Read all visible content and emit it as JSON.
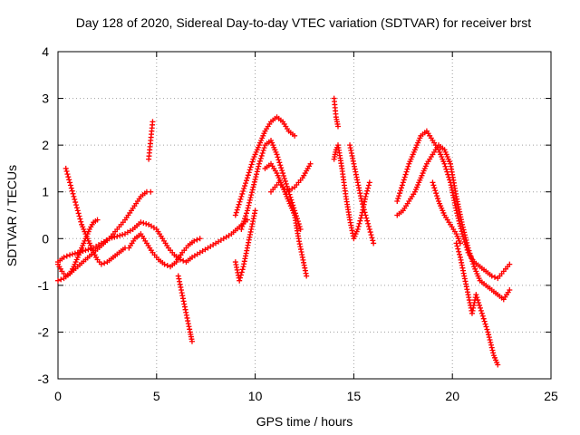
{
  "chart_data": {
    "type": "scatter",
    "title": "Day 128 of 2020, Sidereal Day-to-day VTEC variation (SDTVAR) for receiver brst",
    "xlabel": "GPS time / hours",
    "ylabel": "SDTVAR / TECUs",
    "xlim": [
      0,
      25
    ],
    "ylim": [
      -3,
      4
    ],
    "xticks": [
      "0",
      "5",
      "10",
      "15",
      "20",
      "25"
    ],
    "yticks": [
      "-3",
      "-2",
      "-1",
      "0",
      "1",
      "2",
      "3",
      "4"
    ],
    "grid": true,
    "marker": "+",
    "series": [
      {
        "name": "track-1",
        "color": "#ff0000",
        "x": [
          0.0,
          0.3,
          0.6,
          1.0,
          1.4,
          1.8,
          2.2,
          2.6,
          3.0,
          3.4,
          3.8,
          4.2,
          4.6,
          5.0,
          5.3,
          5.6,
          5.9,
          6.2,
          6.5,
          6.8,
          7.2,
          7.6,
          8.0,
          8.4,
          8.8,
          9.2,
          9.6
        ],
        "y": [
          -0.5,
          -0.4,
          -0.35,
          -0.3,
          -0.25,
          -0.2,
          -0.1,
          0.0,
          0.05,
          0.1,
          0.2,
          0.35,
          0.3,
          0.2,
          0.0,
          -0.2,
          -0.35,
          -0.45,
          -0.5,
          -0.4,
          -0.3,
          -0.2,
          -0.1,
          0.0,
          0.1,
          0.25,
          0.4
        ]
      },
      {
        "name": "track-2",
        "color": "#ff0000",
        "x": [
          0.0,
          0.3,
          0.6,
          1.0,
          1.4,
          1.8,
          2.2,
          2.6,
          3.0,
          3.4,
          3.8,
          4.2,
          4.5,
          4.7
        ],
        "y": [
          -0.9,
          -0.85,
          -0.75,
          -0.6,
          -0.45,
          -0.3,
          -0.15,
          0.0,
          0.2,
          0.4,
          0.65,
          0.9,
          1.0,
          1.0
        ]
      },
      {
        "name": "track-3",
        "color": "#ff0000",
        "x": [
          0.4,
          0.6,
          0.8,
          1.0,
          1.2,
          1.4,
          1.6,
          1.8,
          2.0,
          2.2,
          2.5,
          2.8,
          3.1,
          3.4
        ],
        "y": [
          1.5,
          1.2,
          0.9,
          0.6,
          0.3,
          0.1,
          -0.1,
          -0.3,
          -0.45,
          -0.55,
          -0.5,
          -0.4,
          -0.3,
          -0.2
        ]
      },
      {
        "name": "track-4",
        "color": "#ff0000",
        "x": [
          0.0,
          0.2,
          0.4,
          0.6,
          0.8,
          1.0,
          1.2,
          1.4,
          1.6,
          1.8,
          2.0
        ],
        "y": [
          -0.55,
          -0.7,
          -0.8,
          -0.75,
          -0.6,
          -0.4,
          -0.2,
          0.0,
          0.2,
          0.35,
          0.4
        ]
      },
      {
        "name": "track-5",
        "color": "#ff0000",
        "x": [
          3.6,
          3.9,
          4.2,
          4.5,
          4.8,
          5.1,
          5.4,
          5.7,
          6.0,
          6.3,
          6.6,
          6.9,
          7.2
        ],
        "y": [
          -0.2,
          0.0,
          0.1,
          -0.1,
          -0.3,
          -0.45,
          -0.55,
          -0.6,
          -0.5,
          -0.3,
          -0.15,
          -0.05,
          0.0
        ]
      },
      {
        "name": "track-6",
        "color": "#ff0000",
        "x": [
          4.6,
          4.65,
          4.7,
          4.75,
          4.8
        ],
        "y": [
          1.7,
          1.9,
          2.1,
          2.3,
          2.5
        ]
      },
      {
        "name": "track-7",
        "color": "#ff0000",
        "x": [
          6.1,
          6.25,
          6.4,
          6.55,
          6.7,
          6.8
        ],
        "y": [
          -0.8,
          -1.1,
          -1.4,
          -1.7,
          -2.0,
          -2.2
        ]
      },
      {
        "name": "track-8",
        "color": "#ff0000",
        "x": [
          9.0,
          9.3,
          9.6,
          9.9,
          10.2,
          10.5,
          10.8,
          11.1,
          11.4,
          11.7,
          12.0
        ],
        "y": [
          0.5,
          0.9,
          1.3,
          1.7,
          2.0,
          2.3,
          2.5,
          2.6,
          2.5,
          2.3,
          2.2
        ]
      },
      {
        "name": "track-9",
        "color": "#ff0000",
        "x": [
          9.3,
          9.6,
          9.9,
          10.2,
          10.5,
          10.8,
          11.1,
          11.4,
          11.7,
          12.0,
          12.3
        ],
        "y": [
          0.2,
          0.6,
          1.1,
          1.6,
          2.0,
          2.1,
          1.8,
          1.4,
          1.0,
          0.6,
          0.2
        ]
      },
      {
        "name": "track-10",
        "color": "#ff0000",
        "x": [
          9.0,
          9.2,
          9.4,
          9.6,
          9.8,
          10.0
        ],
        "y": [
          -0.5,
          -0.9,
          -0.6,
          -0.2,
          0.2,
          0.6
        ]
      },
      {
        "name": "track-11",
        "color": "#ff0000",
        "x": [
          10.5,
          10.8,
          11.1,
          11.4,
          11.7,
          12.0,
          12.2,
          12.4,
          12.6
        ],
        "y": [
          1.5,
          1.6,
          1.4,
          1.1,
          0.8,
          0.5,
          0.0,
          -0.4,
          -0.8
        ]
      },
      {
        "name": "track-12",
        "color": "#ff0000",
        "x": [
          10.8,
          11.2,
          11.6,
          12.0,
          12.4,
          12.8
        ],
        "y": [
          1.0,
          1.2,
          1.0,
          1.1,
          1.3,
          1.6
        ]
      },
      {
        "name": "track-13",
        "color": "#ff0000",
        "x": [
          14.0,
          14.05,
          14.1,
          14.15,
          14.2
        ],
        "y": [
          3.0,
          2.8,
          2.6,
          2.5,
          2.4
        ]
      },
      {
        "name": "track-14",
        "color": "#ff0000",
        "x": [
          14.0,
          14.1,
          14.2,
          14.4,
          14.6,
          14.8,
          15.0,
          15.2,
          15.4,
          15.6,
          15.8
        ],
        "y": [
          1.7,
          1.9,
          2.0,
          1.5,
          0.9,
          0.4,
          0.0,
          0.2,
          0.5,
          0.9,
          1.2
        ]
      },
      {
        "name": "track-15",
        "color": "#ff0000",
        "x": [
          14.8,
          15.0,
          15.2,
          15.4,
          15.6,
          15.8,
          16.0
        ],
        "y": [
          2.0,
          1.6,
          1.2,
          0.8,
          0.5,
          0.2,
          -0.1
        ]
      },
      {
        "name": "track-16",
        "color": "#ff0000",
        "x": [
          17.2,
          17.5,
          17.8,
          18.1,
          18.4,
          18.7,
          19.0,
          19.3,
          19.6,
          19.9,
          20.2,
          20.5,
          20.8,
          21.1,
          21.4,
          21.7,
          22.0,
          22.3,
          22.6,
          22.9
        ],
        "y": [
          0.8,
          1.2,
          1.6,
          1.9,
          2.2,
          2.3,
          2.1,
          1.9,
          1.6,
          1.2,
          0.6,
          0.1,
          -0.3,
          -0.5,
          -0.6,
          -0.7,
          -0.8,
          -0.85,
          -0.7,
          -0.55
        ]
      },
      {
        "name": "track-17",
        "color": "#ff0000",
        "x": [
          17.2,
          17.5,
          17.8,
          18.1,
          18.4,
          18.7,
          19.0,
          19.3,
          19.6,
          19.9,
          20.2,
          20.5,
          20.8,
          21.1,
          21.4,
          21.7,
          22.0,
          22.3,
          22.6,
          22.9
        ],
        "y": [
          0.5,
          0.6,
          0.8,
          1.0,
          1.3,
          1.6,
          1.8,
          2.0,
          1.9,
          1.6,
          0.9,
          0.3,
          -0.2,
          -0.6,
          -0.9,
          -1.0,
          -1.1,
          -1.2,
          -1.3,
          -1.1
        ]
      },
      {
        "name": "track-18",
        "color": "#ff0000",
        "x": [
          20.2,
          20.4,
          20.6,
          20.8,
          21.0,
          21.2,
          21.5,
          21.8,
          22.1,
          22.3
        ],
        "y": [
          -0.1,
          -0.4,
          -0.8,
          -1.2,
          -1.6,
          -1.2,
          -1.6,
          -2.0,
          -2.5,
          -2.7
        ]
      },
      {
        "name": "track-19",
        "color": "#ff0000",
        "x": [
          19.0,
          19.3,
          19.6,
          19.9,
          20.2,
          20.4
        ],
        "y": [
          1.2,
          0.8,
          0.5,
          0.3,
          0.1,
          -0.1
        ]
      }
    ]
  }
}
